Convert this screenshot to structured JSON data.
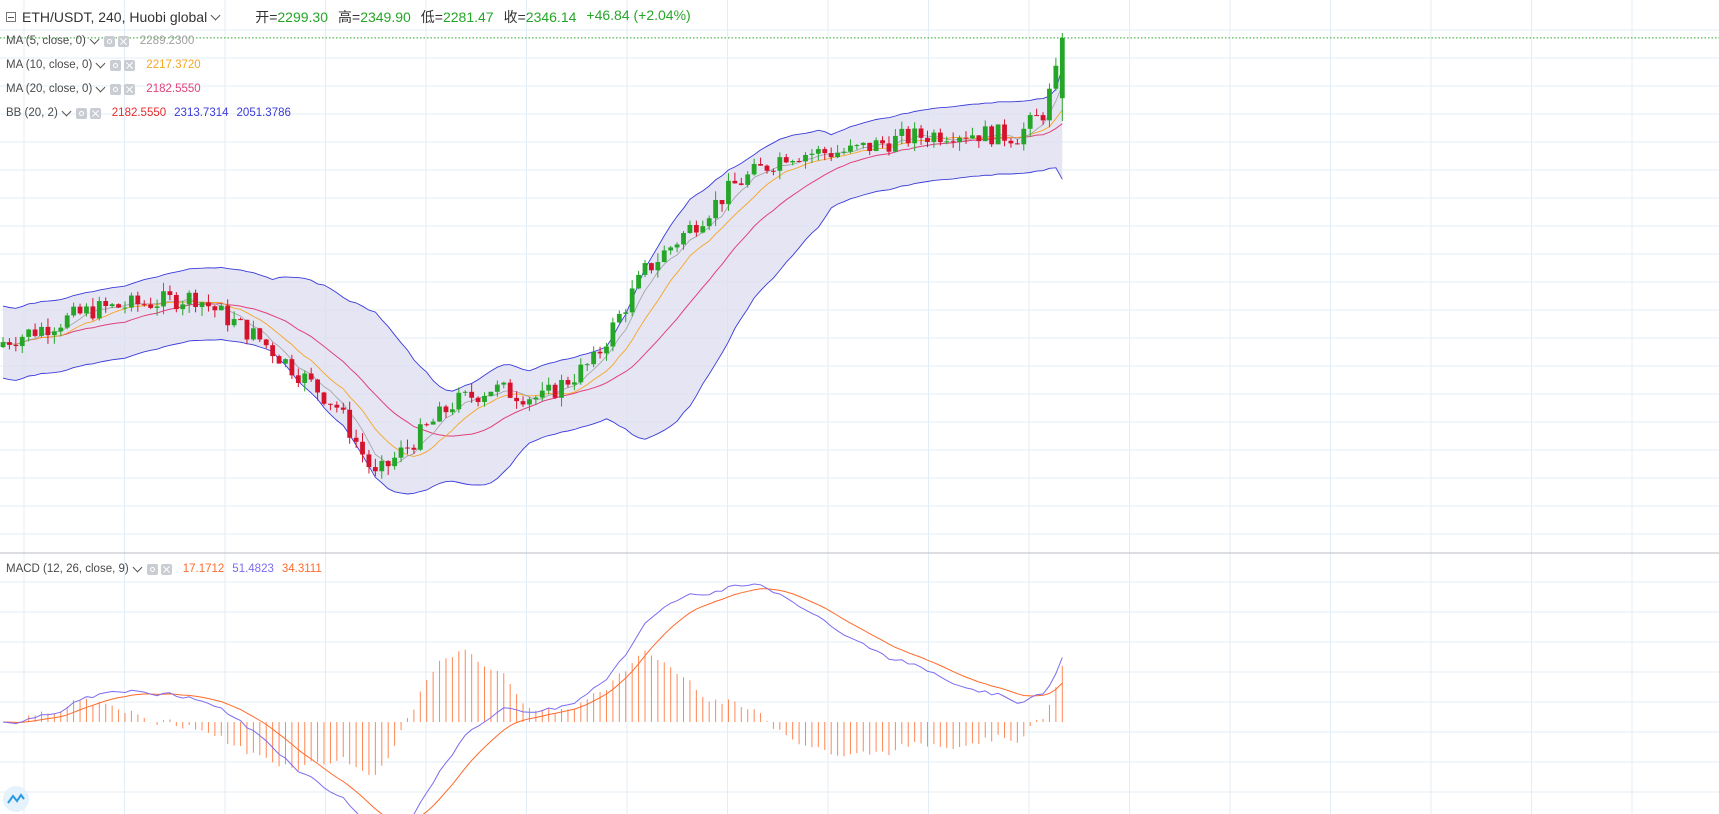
{
  "header": {
    "symbol": "ETH/USDT, 240, Huobi global",
    "open_label": "开",
    "open": "2299.30",
    "high_label": "高",
    "high": "2349.90",
    "low_label": "低",
    "low": "2281.47",
    "close_label": "收",
    "close": "2346.14",
    "change": "+46.84 (+2.04%)"
  },
  "indicators": {
    "ma5": {
      "label": "MA (5, close, 0)",
      "value": "2289.2300",
      "color": "#a0a0a0"
    },
    "ma10": {
      "label": "MA (10, close, 0)",
      "value": "2217.3720",
      "color": "#f5a623"
    },
    "ma20": {
      "label": "MA (20, close, 0)",
      "value": "2182.5550",
      "color": "#e0427a"
    },
    "bb": {
      "label": "BB (20, 2)",
      "basis": "2182.5550",
      "upper": "2313.7314",
      "lower": "2051.3786",
      "basis_color": "#e52c2c",
      "band_color": "#3b3bd9"
    },
    "macd": {
      "label": "MACD (12, 26, close, 9)",
      "hist": "17.1712",
      "macd": "51.4823",
      "signal": "34.3111",
      "hist_color": "#ff6a2b",
      "macd_color": "#7b6cf0",
      "signal_color": "#ff6a2b"
    }
  },
  "colors": {
    "up": "#26a628",
    "down": "#d6132c",
    "band_fill": "#dcdcf0",
    "grid": "#e3edf5"
  },
  "chart_data": [
    {
      "type": "candlestick",
      "title": "ETH/USDT, 240, Huobi global",
      "ylim": [
        1950,
        2360
      ],
      "bar_count": 166,
      "price_anchors": {
        "index": [
          0,
          14,
          30,
          40,
          52,
          58,
          70,
          76,
          84,
          92,
          100,
          108,
          114,
          122,
          132,
          140,
          148,
          158,
          162,
          166
        ],
        "close": [
          2110,
          2135,
          2145,
          2112,
          2060,
          2005,
          2062,
          2074,
          2066,
          2095,
          2165,
          2203,
          2232,
          2256,
          2258,
          2268,
          2273,
          2270,
          2288,
          2346
        ]
      },
      "last_bar": {
        "open": 2299.3,
        "high": 2349.9,
        "low": 2281.47,
        "close": 2346.14
      },
      "indicator_last": {
        "ma5": 2289.23,
        "ma10": 2217.372,
        "ma20": 2182.555,
        "bb_basis": 2182.555,
        "bb_upper": 2313.7314,
        "bb_lower": 2051.3786
      }
    },
    {
      "type": "line",
      "title": "MACD (12, 26, close, 9)",
      "last": {
        "histogram": 17.1712,
        "macd": 51.4823,
        "signal": 34.3111
      }
    }
  ]
}
